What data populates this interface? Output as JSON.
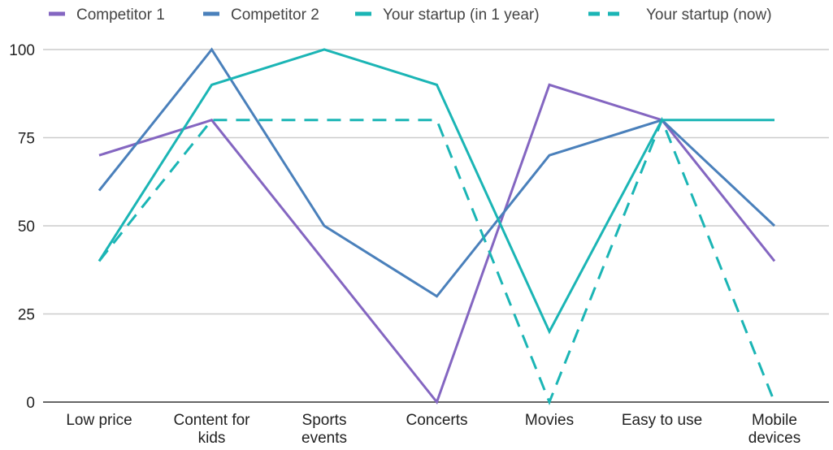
{
  "chart_data": {
    "type": "line",
    "categories": [
      [
        "Low price"
      ],
      [
        "Content for",
        "kids"
      ],
      [
        "Sports",
        "events"
      ],
      [
        "Concerts"
      ],
      [
        "Movies"
      ],
      [
        "Easy to use"
      ],
      [
        "Mobile",
        "devices"
      ]
    ],
    "ylim": [
      0,
      100
    ],
    "yticks": [
      "0",
      "25",
      "50",
      "75",
      "100"
    ],
    "grid": true,
    "legend_position": "top",
    "series": [
      {
        "name": "Competitor 1",
        "values": [
          70,
          80,
          40,
          0,
          90,
          80,
          40
        ],
        "color": "#8466c1",
        "dash": false
      },
      {
        "name": "Competitor 2",
        "values": [
          60,
          100,
          50,
          30,
          70,
          80,
          50
        ],
        "color": "#4a80bb",
        "dash": false
      },
      {
        "name": "Your startup (in 1 year)",
        "values": [
          40,
          90,
          100,
          90,
          20,
          80,
          80
        ],
        "color": "#1bb5b5",
        "dash": false
      },
      {
        "name": "Your startup (now)",
        "values": [
          40,
          80,
          80,
          80,
          0,
          80,
          0
        ],
        "color": "#1bb5b5",
        "dash": true
      }
    ]
  }
}
